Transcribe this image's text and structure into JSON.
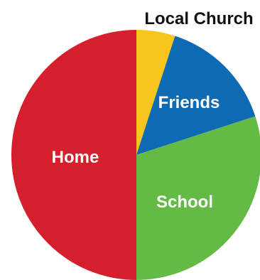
{
  "chart_data": {
    "type": "pie",
    "title": "",
    "categories": [
      "Local Church",
      "Friends",
      "School",
      "Home"
    ],
    "values": [
      5,
      15,
      30,
      50
    ],
    "colors": [
      "#f7c51b",
      "#0e6ab3",
      "#63bb46",
      "#d61f2c"
    ],
    "start_angle_deg": 0,
    "direction": "clockwise",
    "legend": "none",
    "labels": [
      {
        "text": "Local Church",
        "placement": "outside"
      },
      {
        "text": "Friends",
        "placement": "inside"
      },
      {
        "text": "School",
        "placement": "inside"
      },
      {
        "text": "Home",
        "placement": "inside"
      }
    ]
  }
}
